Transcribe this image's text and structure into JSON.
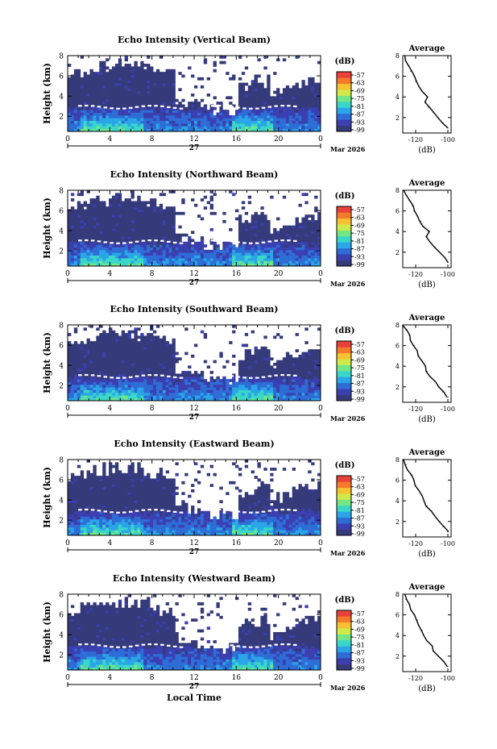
{
  "colors": {
    "background_echo": "#353a7a",
    "scale": [
      "#353a7a",
      "#3b3fb0",
      "#2e6cd6",
      "#2aa5e8",
      "#3ad6c8",
      "#74e686",
      "#cfe94a",
      "#f6c231",
      "#f47a2a",
      "#e9423a"
    ]
  },
  "chart_data": [
    {
      "type": "heatmap",
      "title": "Echo Intensity (Vertical Beam)",
      "ylabel": "Height (km)",
      "ylim": [
        0.5,
        8
      ],
      "yticks": [
        "2",
        "4",
        "6",
        "8"
      ],
      "xticks": [
        "0",
        "4",
        "8",
        "12",
        "16",
        "20",
        "0"
      ],
      "xlim": [
        0,
        24
      ],
      "date_label": "27",
      "month_label": "Mar 2026",
      "colorbar": {
        "unit": "(dB)",
        "ticks": [
          "-57",
          "-63",
          "-69",
          "-75",
          "-81",
          "-87",
          "-93",
          "-99"
        ]
      },
      "profile": {
        "title": "Average",
        "xlabel": "(dB)",
        "xticks": [
          "-120",
          "-100"
        ],
        "yticks": [
          "2",
          "4",
          "6",
          "8"
        ],
        "xlim": [
          -128,
          -98
        ],
        "ylim": [
          0.5,
          8
        ],
        "height_km": [
          1.0,
          1.5,
          2.0,
          2.5,
          3.0,
          3.5,
          4.0,
          4.5,
          5.0,
          5.5,
          6.0,
          6.5,
          7.0,
          7.5,
          8.0
        ],
        "value_db": [
          -100,
          -103,
          -106,
          -109,
          -112,
          -114,
          -113,
          -116,
          -118,
          -120,
          -121,
          -123,
          -124,
          -126,
          -127
        ]
      }
    },
    {
      "type": "heatmap",
      "title": "Echo Intensity (Northward Beam)",
      "ylabel": "Height (km)",
      "ylim": [
        0.5,
        8
      ],
      "yticks": [
        "2",
        "4",
        "6",
        "8"
      ],
      "xticks": [
        "0",
        "4",
        "8",
        "12",
        "16",
        "20",
        "0"
      ],
      "xlim": [
        0,
        24
      ],
      "date_label": "27",
      "month_label": "Mar 2026",
      "colorbar": {
        "unit": "(dB)",
        "ticks": [
          "-57",
          "-63",
          "-69",
          "-75",
          "-81",
          "-87",
          "-93",
          "-99"
        ]
      },
      "profile": {
        "title": "Average",
        "xlabel": "(dB)",
        "xticks": [
          "-120",
          "-100"
        ],
        "yticks": [
          "2",
          "4",
          "6",
          "8"
        ],
        "xlim": [
          -128,
          -98
        ],
        "ylim": [
          0.5,
          8
        ],
        "height_km": [
          1.0,
          1.5,
          2.0,
          2.5,
          3.0,
          3.5,
          4.0,
          4.5,
          5.0,
          5.5,
          6.0,
          6.5,
          7.0,
          7.5,
          8.0
        ],
        "value_db": [
          -100,
          -102,
          -105,
          -108,
          -111,
          -113,
          -112,
          -115,
          -117,
          -119,
          -121,
          -122,
          -124,
          -126,
          -127
        ]
      }
    },
    {
      "type": "heatmap",
      "title": "Echo Intensity (Southward Beam)",
      "ylabel": "Height (km)",
      "ylim": [
        0.5,
        8
      ],
      "yticks": [
        "2",
        "4",
        "6",
        "8"
      ],
      "xticks": [
        "0",
        "4",
        "8",
        "12",
        "16",
        "20",
        "0"
      ],
      "xlim": [
        0,
        24
      ],
      "date_label": "27",
      "month_label": "Mar 2026",
      "colorbar": {
        "unit": "(dB)",
        "ticks": [
          "-57",
          "-63",
          "-69",
          "-75",
          "-81",
          "-87",
          "-93",
          "-99"
        ]
      },
      "profile": {
        "title": "Average",
        "xlabel": "(dB)",
        "xticks": [
          "-120",
          "-100"
        ],
        "yticks": [
          "2",
          "4",
          "6",
          "8"
        ],
        "xlim": [
          -128,
          -98
        ],
        "ylim": [
          0.5,
          8
        ],
        "height_km": [
          1.0,
          1.5,
          2.0,
          2.5,
          3.0,
          3.5,
          4.0,
          4.5,
          5.0,
          5.5,
          6.0,
          6.5,
          7.0,
          7.5,
          8.0
        ],
        "value_db": [
          -100,
          -103,
          -106,
          -108,
          -111,
          -113,
          -114,
          -116,
          -118,
          -119,
          -121,
          -123,
          -124,
          -126,
          -128
        ]
      }
    },
    {
      "type": "heatmap",
      "title": "Echo Intensity (Eastward Beam)",
      "ylabel": "Height (km)",
      "ylim": [
        0.5,
        8
      ],
      "yticks": [
        "2",
        "4",
        "6",
        "8"
      ],
      "xticks": [
        "0",
        "4",
        "8",
        "12",
        "16",
        "20",
        "0"
      ],
      "xlim": [
        0,
        24
      ],
      "date_label": "27",
      "month_label": "Mar 2026",
      "colorbar": {
        "unit": "(dB)",
        "ticks": [
          "-57",
          "-63",
          "-69",
          "-75",
          "-81",
          "-87",
          "-93",
          "-99"
        ]
      },
      "profile": {
        "title": "Average",
        "xlabel": "(dB)",
        "xticks": [
          "-120",
          "-100"
        ],
        "yticks": [
          "2",
          "4",
          "6",
          "8"
        ],
        "xlim": [
          -128,
          -98
        ],
        "ylim": [
          0.5,
          8
        ],
        "height_km": [
          1.0,
          1.5,
          2.0,
          2.5,
          3.0,
          3.5,
          4.0,
          4.5,
          5.0,
          5.5,
          6.0,
          6.5,
          7.0,
          7.5,
          8.0
        ],
        "value_db": [
          -100,
          -103,
          -105,
          -108,
          -110,
          -113,
          -115,
          -116,
          -118,
          -120,
          -121,
          -123,
          -125,
          -126,
          -127
        ]
      }
    },
    {
      "type": "heatmap",
      "title": "Echo Intensity (Westward Beam)",
      "ylabel": "Height (km)",
      "ylim": [
        0.5,
        8
      ],
      "yticks": [
        "2",
        "4",
        "6",
        "8"
      ],
      "xticks": [
        "0",
        "4",
        "8",
        "12",
        "16",
        "20",
        "0"
      ],
      "xlim": [
        0,
        24
      ],
      "date_label": "27",
      "month_label": "Mar 2026",
      "colorbar": {
        "unit": "(dB)",
        "ticks": [
          "-57",
          "-63",
          "-69",
          "-75",
          "-81",
          "-87",
          "-93",
          "-99"
        ]
      },
      "profile": {
        "title": "Average",
        "xlabel": "(dB)",
        "xticks": [
          "-120",
          "-100"
        ],
        "yticks": [
          "2",
          "4",
          "6",
          "8"
        ],
        "xlim": [
          -128,
          -98
        ],
        "ylim": [
          0.5,
          8
        ],
        "height_km": [
          1.0,
          1.5,
          2.0,
          2.5,
          3.0,
          3.5,
          4.0,
          4.5,
          5.0,
          5.5,
          6.0,
          6.5,
          7.0,
          7.5,
          8.0
        ],
        "value_db": [
          -100,
          -103,
          -106,
          -109,
          -110,
          -113,
          -115,
          -116,
          -118,
          -119,
          -121,
          -123,
          -124,
          -126,
          -127
        ]
      }
    }
  ],
  "footer": {
    "xlabel": "Local Time"
  }
}
